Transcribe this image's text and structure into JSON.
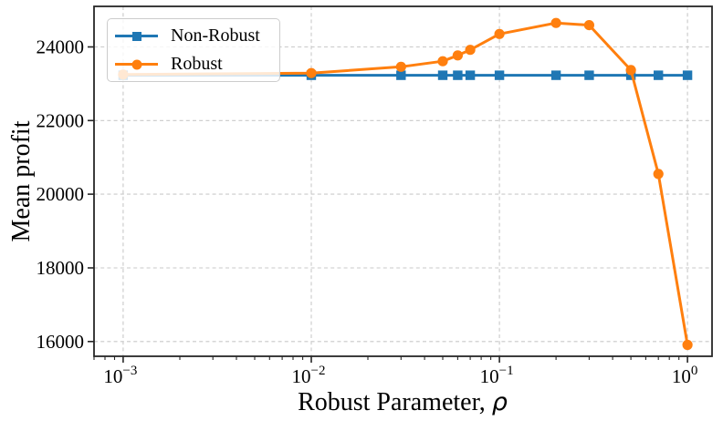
{
  "chart_data": {
    "type": "line",
    "title": "",
    "xlabel": "Robust Parameter, ρ",
    "xlabel_text": "Robust Parameter, ",
    "xlabel_symbol": "ρ",
    "ylabel": "Mean profit",
    "xscale": "log",
    "yscale": "linear",
    "xlim": [
      0.0007,
      1.35
    ],
    "ylim": [
      15600,
      25100
    ],
    "x_ticks": [
      {
        "value": 0.001,
        "base": "10",
        "exponent": "−3"
      },
      {
        "value": 0.01,
        "base": "10",
        "exponent": "−2"
      },
      {
        "value": 0.1,
        "base": "10",
        "exponent": "−1"
      },
      {
        "value": 1.0,
        "base": "10",
        "exponent": "0"
      }
    ],
    "y_ticks": [
      16000,
      18000,
      20000,
      22000,
      24000
    ],
    "grid": {
      "show": true,
      "color": "#c9c9c9",
      "style": "dashed"
    },
    "spine_color": "#262626",
    "legend": {
      "position": "upper-left",
      "entries": [
        "Non-Robust",
        "Robust"
      ]
    },
    "series": [
      {
        "name": "Non-Robust",
        "color": "#1f77b4",
        "marker": "square",
        "x": [
          0.001,
          0.01,
          0.03,
          0.05,
          0.06,
          0.07,
          0.1,
          0.2,
          0.3,
          0.5,
          0.7,
          1.0
        ],
        "y": [
          23230,
          23230,
          23230,
          23230,
          23230,
          23230,
          23230,
          23230,
          23230,
          23230,
          23230,
          23230
        ]
      },
      {
        "name": "Robust",
        "color": "#ff7f0e",
        "marker": "circle",
        "x": [
          0.001,
          0.01,
          0.03,
          0.05,
          0.06,
          0.07,
          0.1,
          0.2,
          0.3,
          0.5,
          0.7,
          1.0
        ],
        "y": [
          23250,
          23290,
          23460,
          23610,
          23770,
          23920,
          24350,
          24650,
          24590,
          23370,
          20550,
          15910
        ]
      }
    ]
  }
}
